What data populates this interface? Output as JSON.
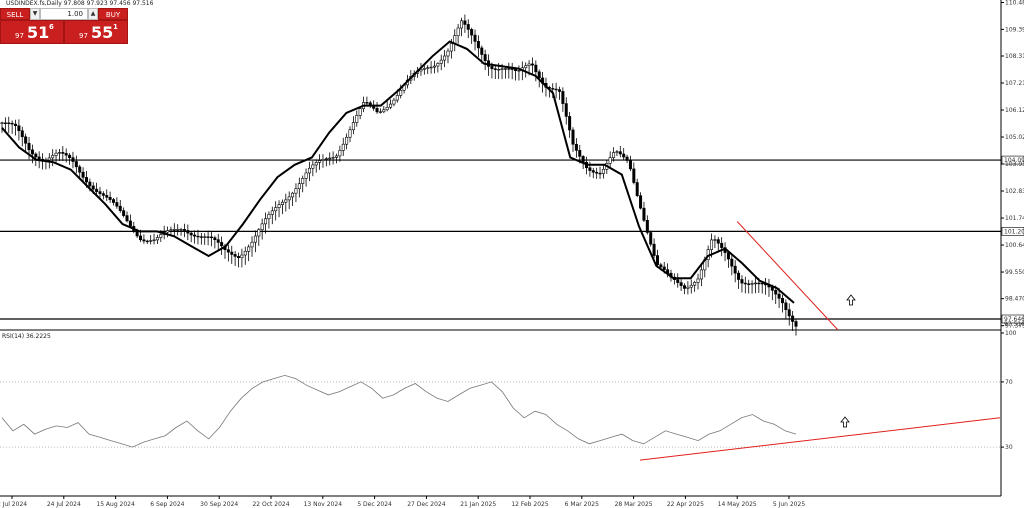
{
  "header": {
    "symbol_line": "USDINDEX.fs,Daily  97.808 97.923 97.456 97.516"
  },
  "trade_panel": {
    "sell_label": "SELL",
    "buy_label": "BUY",
    "lot": "1.00",
    "sell_small": "97",
    "sell_big": "51",
    "sell_sup": "6",
    "buy_small": "97",
    "buy_big": "55",
    "buy_sup": "1"
  },
  "chart_data": [
    {
      "type": "candlestick",
      "title": "USDINDEX.fs,Daily",
      "ylim": [
        97.2,
        110.5
      ],
      "y_ticks": [
        "110.480",
        "109.390",
        "108.310",
        "107.215",
        "106.120",
        "105.025",
        "103.930",
        "102.835",
        "101.740",
        "100.645",
        "99.550",
        "98.470",
        "97.375"
      ],
      "x_ticks": [
        "2 Jul 2024",
        "24 Jul 2024",
        "15 Aug 2024",
        "6 Sep 2024",
        "30 Sep 2024",
        "22 Oct 2024",
        "13 Nov 2024",
        "5 Dec 2024",
        "27 Dec 2024",
        "21 Jan 2025",
        "12 Feb 2025",
        "6 Mar 2025",
        "28 Mar 2025",
        "22 Apr 2025",
        "14 May 2025",
        "5 Jun 2025"
      ],
      "close_path": [
        105.6,
        105.3,
        104.5,
        104.2,
        104.3,
        104.0,
        103.4,
        102.8,
        102.2,
        101.6,
        101.0,
        100.8,
        101.1,
        101.4,
        101.1,
        100.8,
        100.4,
        100.3,
        100.8,
        101.6,
        102.4,
        103.0,
        103.6,
        104.0,
        104.4,
        105.4,
        106.3,
        106.0,
        106.6,
        107.2,
        107.6,
        108.0,
        108.6,
        109.6,
        108.8,
        108.0,
        107.8,
        107.5,
        108.1,
        107.2,
        106.8,
        104.6,
        103.9,
        103.6,
        104.3,
        104.0,
        102.0,
        99.8,
        99.2,
        99.0,
        99.4,
        100.8,
        100.2,
        99.3,
        99.1,
        98.8,
        98.4,
        97.5
      ],
      "close_path_x": "daily, 2 Jul 2024 to 11 Jun 2025",
      "moving_average": [
        105.4,
        104.6,
        104.1,
        104.0,
        103.7,
        103.0,
        102.3,
        101.5,
        101.2,
        101.2,
        101.0,
        100.6,
        100.2,
        100.6,
        101.5,
        102.5,
        103.4,
        103.9,
        104.2,
        105.2,
        106.0,
        106.3,
        106.3,
        106.9,
        107.6,
        108.3,
        108.9,
        108.6,
        108.0,
        107.9,
        107.8,
        107.5,
        106.8,
        104.2,
        103.9,
        103.9,
        103.5,
        101.4,
        99.8,
        99.3,
        99.3,
        100.2,
        100.5,
        99.9,
        99.2,
        98.9,
        98.3
      ],
      "horizontal_levels": [
        {
          "label": "104.09",
          "value": 104.09
        },
        {
          "label": "101.20",
          "value": 101.2
        },
        {
          "label": "97.646",
          "value": 97.646
        }
      ],
      "current_price_label": "97.516",
      "trendline": {
        "start_date": "14 May 2025",
        "start": 101.6,
        "end_value": 97.2
      },
      "annotations": [
        "up-arrow"
      ]
    },
    {
      "type": "line",
      "title": "RSI(14) 36.2225",
      "ylim": [
        0,
        100
      ],
      "y_ticks": [
        "100",
        "70",
        "30",
        "0"
      ],
      "levels": [
        70,
        30
      ],
      "series": [
        {
          "values": [
            48,
            40,
            44,
            38,
            41,
            43,
            42,
            45,
            38,
            36,
            34,
            32,
            30,
            33,
            35,
            37,
            42,
            46,
            40,
            35,
            42,
            52,
            60,
            66,
            70,
            72,
            74,
            72,
            68,
            65,
            62,
            64,
            67,
            70,
            66,
            60,
            62,
            66,
            69,
            64,
            60,
            58,
            62,
            66,
            68,
            70,
            64,
            54,
            48,
            52,
            50,
            44,
            40,
            35,
            32,
            34,
            36,
            38,
            34,
            32,
            36,
            40,
            38,
            36,
            34,
            38,
            40,
            44,
            48,
            50,
            46,
            44,
            40,
            38
          ]
        }
      ],
      "trendline": {
        "start": 22,
        "end": 48
      },
      "annotations": [
        "up-arrow"
      ]
    }
  ],
  "colors": {
    "candle": "#000000",
    "trendline": "#e0201c",
    "sell_button": "#c9201f",
    "buy_button": "#c9201f",
    "price_tag": "#000000",
    "rsi_line": "#777777"
  }
}
